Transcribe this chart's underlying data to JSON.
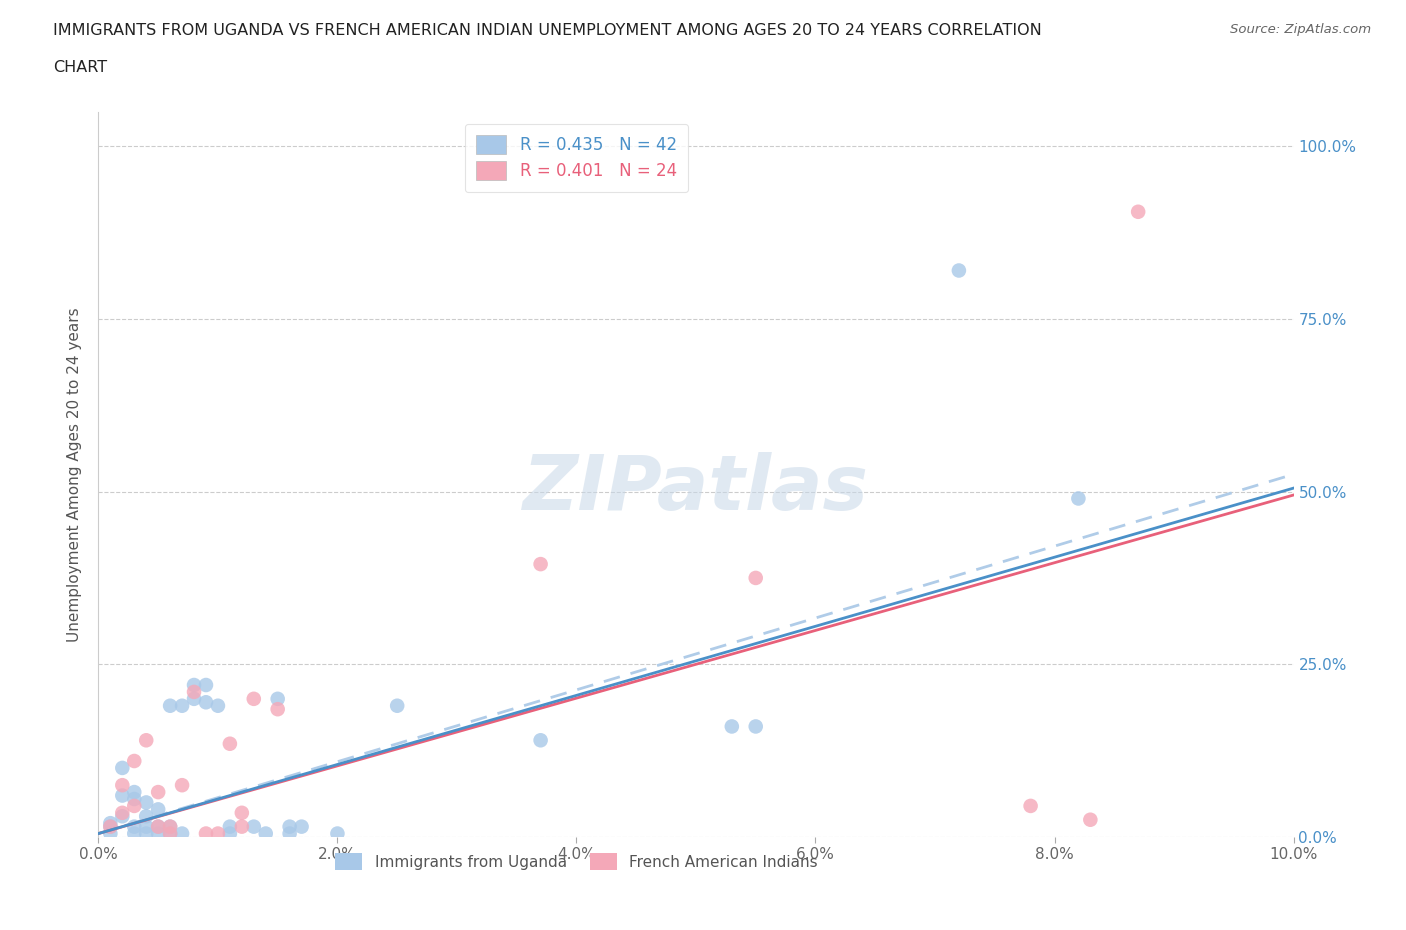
{
  "title_line1": "IMMIGRANTS FROM UGANDA VS FRENCH AMERICAN INDIAN UNEMPLOYMENT AMONG AGES 20 TO 24 YEARS CORRELATION",
  "title_line2": "CHART",
  "source": "Source: ZipAtlas.com",
  "ylabel": "Unemployment Among Ages 20 to 24 years",
  "xlabel_ticks": [
    "0.0%",
    "2.0%",
    "4.0%",
    "6.0%",
    "8.0%",
    "10.0%"
  ],
  "ylabel_ticks": [
    "0.0%",
    "25.0%",
    "50.0%",
    "75.0%",
    "100.0%"
  ],
  "xmin": 0.0,
  "xmax": 0.1,
  "ymin": 0.0,
  "ymax": 1.05,
  "legend_r1": "R = 0.435",
  "legend_n1": "N = 42",
  "legend_r2": "R = 0.401",
  "legend_n2": "N = 24",
  "blue_color": "#a8c8e8",
  "pink_color": "#f4a8b8",
  "blue_line_color": "#4a90c8",
  "pink_line_color": "#e8607a",
  "blue_line_dash_color": "#b0cce8",
  "blue_scatter": [
    [
      0.001,
      0.015
    ],
    [
      0.001,
      0.005
    ],
    [
      0.001,
      0.02
    ],
    [
      0.002,
      0.03
    ],
    [
      0.002,
      0.06
    ],
    [
      0.002,
      0.1
    ],
    [
      0.003,
      0.055
    ],
    [
      0.003,
      0.065
    ],
    [
      0.003,
      0.005
    ],
    [
      0.003,
      0.015
    ],
    [
      0.004,
      0.03
    ],
    [
      0.004,
      0.05
    ],
    [
      0.004,
      0.005
    ],
    [
      0.004,
      0.015
    ],
    [
      0.005,
      0.04
    ],
    [
      0.005,
      0.005
    ],
    [
      0.005,
      0.015
    ],
    [
      0.006,
      0.005
    ],
    [
      0.006,
      0.015
    ],
    [
      0.006,
      0.19
    ],
    [
      0.007,
      0.005
    ],
    [
      0.007,
      0.19
    ],
    [
      0.008,
      0.2
    ],
    [
      0.008,
      0.22
    ],
    [
      0.009,
      0.195
    ],
    [
      0.009,
      0.22
    ],
    [
      0.01,
      0.19
    ],
    [
      0.011,
      0.005
    ],
    [
      0.011,
      0.015
    ],
    [
      0.013,
      0.015
    ],
    [
      0.014,
      0.005
    ],
    [
      0.015,
      0.2
    ],
    [
      0.016,
      0.005
    ],
    [
      0.016,
      0.015
    ],
    [
      0.017,
      0.015
    ],
    [
      0.02,
      0.005
    ],
    [
      0.025,
      0.19
    ],
    [
      0.037,
      0.14
    ],
    [
      0.053,
      0.16
    ],
    [
      0.055,
      0.16
    ],
    [
      0.072,
      0.82
    ],
    [
      0.082,
      0.49
    ]
  ],
  "pink_scatter": [
    [
      0.001,
      0.015
    ],
    [
      0.002,
      0.035
    ],
    [
      0.002,
      0.075
    ],
    [
      0.003,
      0.045
    ],
    [
      0.003,
      0.11
    ],
    [
      0.004,
      0.14
    ],
    [
      0.005,
      0.015
    ],
    [
      0.005,
      0.065
    ],
    [
      0.006,
      0.005
    ],
    [
      0.006,
      0.015
    ],
    [
      0.007,
      0.075
    ],
    [
      0.008,
      0.21
    ],
    [
      0.009,
      0.005
    ],
    [
      0.01,
      0.005
    ],
    [
      0.011,
      0.135
    ],
    [
      0.012,
      0.015
    ],
    [
      0.012,
      0.035
    ],
    [
      0.013,
      0.2
    ],
    [
      0.015,
      0.185
    ],
    [
      0.037,
      0.395
    ],
    [
      0.055,
      0.375
    ],
    [
      0.078,
      0.045
    ],
    [
      0.083,
      0.025
    ],
    [
      0.087,
      0.905
    ]
  ],
  "watermark": "ZIPatlas",
  "background_color": "#ffffff",
  "grid_color": "#cccccc"
}
